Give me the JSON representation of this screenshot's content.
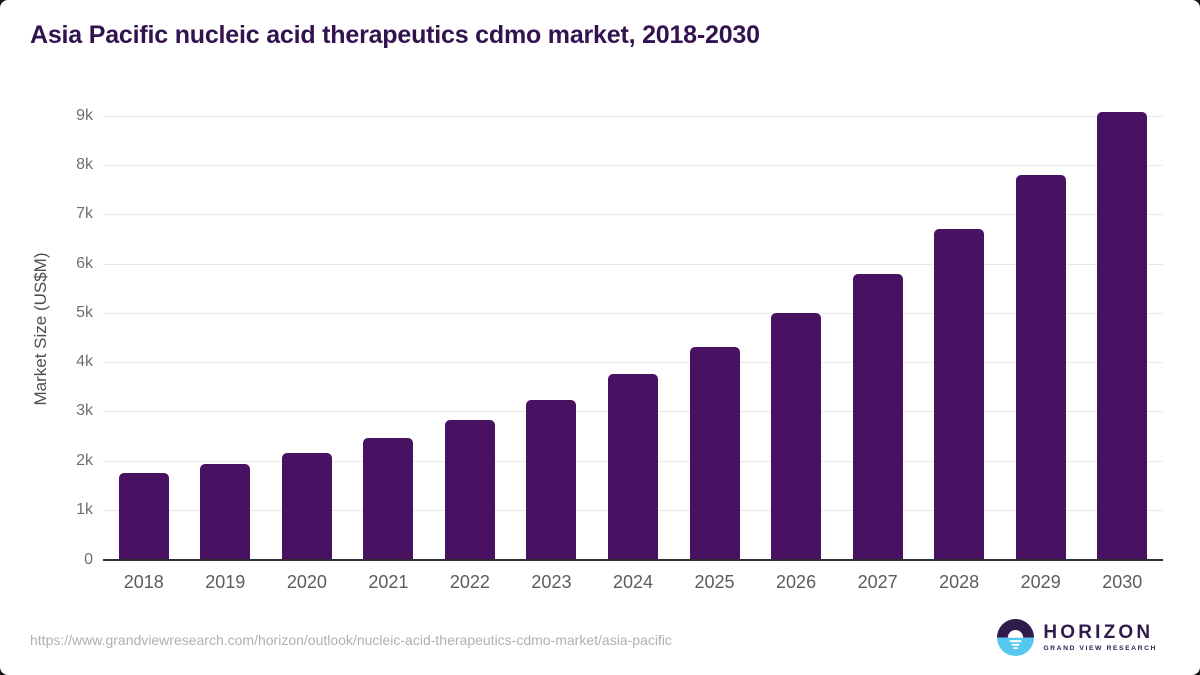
{
  "chart_data": {
    "type": "bar",
    "title": "Asia Pacific nucleic acid therapeutics cdmo market, 2018-2030",
    "xlabel": "",
    "ylabel": "Market Size (US$M)",
    "categories": [
      "2018",
      "2019",
      "2020",
      "2021",
      "2022",
      "2023",
      "2024",
      "2025",
      "2026",
      "2027",
      "2028",
      "2029",
      "2030"
    ],
    "values": [
      1750,
      1920,
      2150,
      2450,
      2820,
      3230,
      3750,
      4300,
      5000,
      5790,
      6700,
      7800,
      9070
    ],
    "ylim": [
      0,
      9320
    ],
    "yticks": [
      0,
      1000,
      2000,
      3000,
      4000,
      5000,
      6000,
      7000,
      8000,
      9000
    ],
    "ytick_labels": [
      "0",
      "1k",
      "2k",
      "3k",
      "4k",
      "5k",
      "6k",
      "7k",
      "8k",
      "9k"
    ],
    "grid": true,
    "legend": false,
    "bar_color": "#481162"
  },
  "footer": {
    "source_url": "https://www.grandviewresearch.com/horizon/outlook/nucleic-acid-therapeutics-cdmo-market/asia-pacific",
    "logo": {
      "brand": "HORIZON",
      "sub_brand": "GRAND VIEW RESEARCH",
      "icon": "sunrise-horizon-icon"
    }
  },
  "colors": {
    "bar": "#481162",
    "title_text": "#331250",
    "axis_line": "#2e2e33",
    "gridline": "#e9e9e9",
    "ytick_text": "#6f6f6f",
    "xtick_text": "#5c5c5c",
    "url_text": "#b0b0b0",
    "logo_purple": "#2f1c4d",
    "logo_blue": "#56c7f0",
    "background": "#ffffff"
  }
}
